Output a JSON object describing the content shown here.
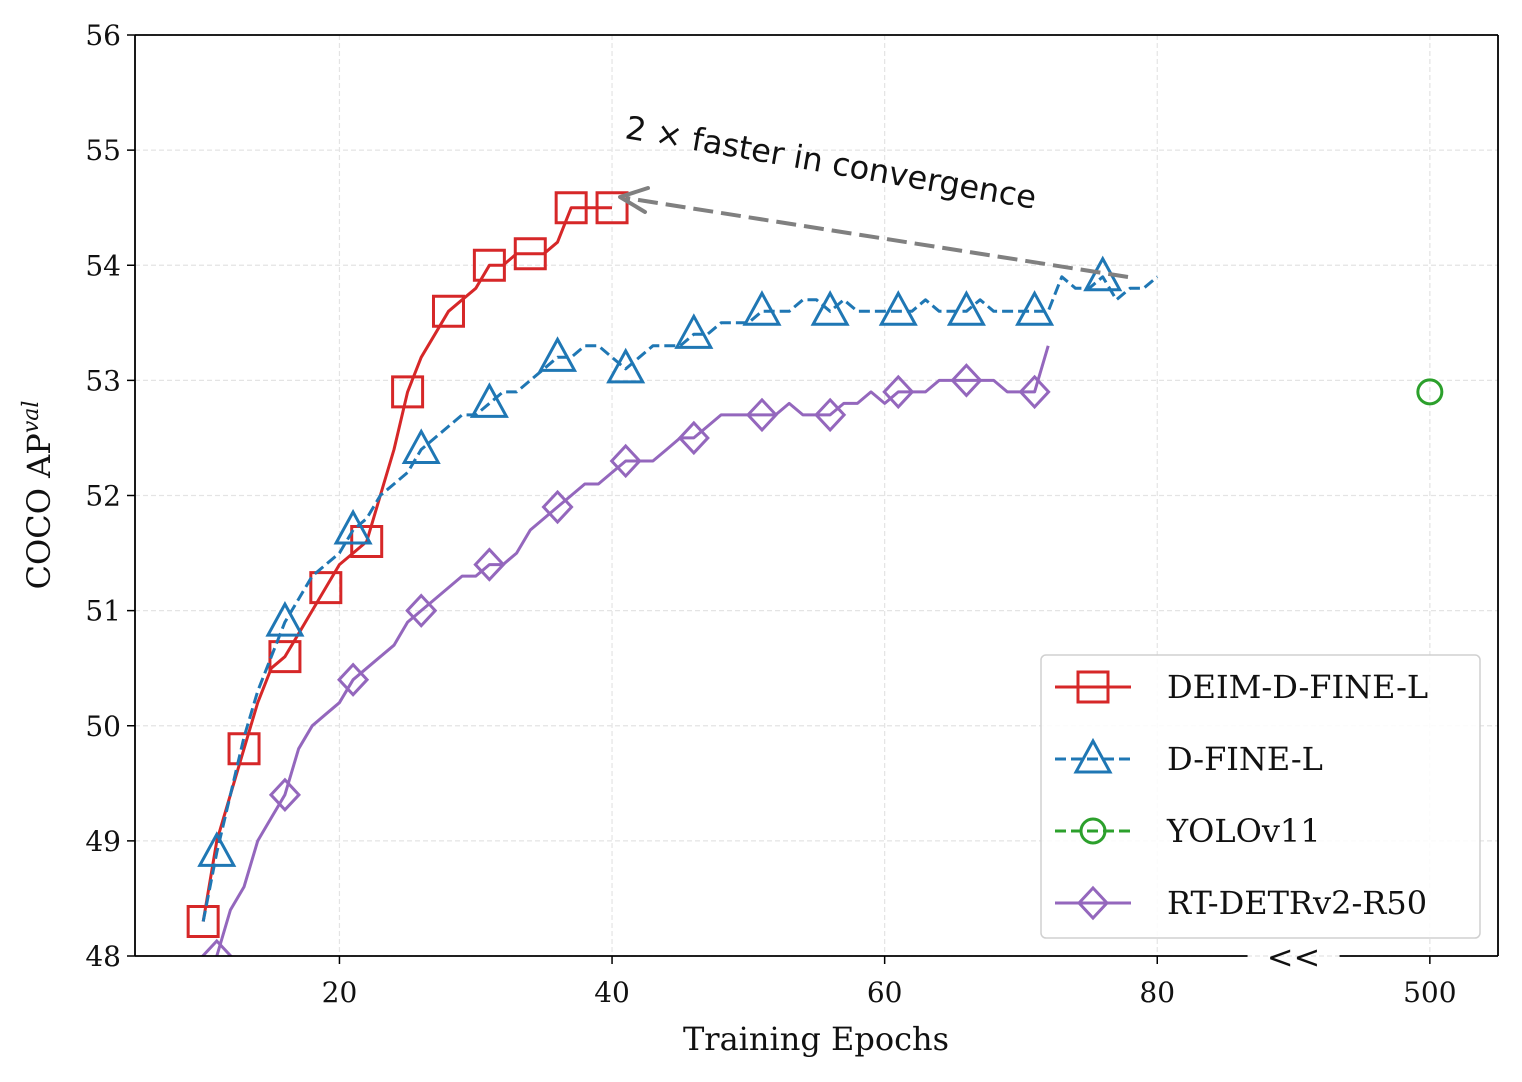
{
  "chart_data": {
    "type": "line",
    "xlabel": "Training Epochs",
    "ylabel": "COCO AP",
    "ylabel_sup": "val",
    "xlim": [
      5,
      505
    ],
    "xbreak": [
      90,
      490
    ],
    "break_label": "<<",
    "xticks": [
      20,
      40,
      60,
      80,
      500
    ],
    "ylim": [
      48,
      56
    ],
    "yticks": [
      48,
      49,
      50,
      51,
      52,
      53,
      54,
      55,
      56
    ],
    "grid": true,
    "legend": "lower right",
    "annotation": "2 × faster in convergence",
    "series": [
      {
        "name": "DEIM-D-FINE-L",
        "color": "#d62728",
        "linestyle": "solid",
        "marker": "square",
        "markevery": [
          0,
          3
        ],
        "x": [
          10,
          11,
          12,
          13,
          14,
          15,
          16,
          17,
          18,
          19,
          20,
          21,
          22,
          23,
          24,
          25,
          26,
          27,
          28,
          29,
          30,
          31,
          32,
          33,
          34,
          35,
          36,
          37,
          38,
          39,
          40
        ],
        "values": [
          48.3,
          49.0,
          49.4,
          49.8,
          50.2,
          50.5,
          50.6,
          50.8,
          51.0,
          51.2,
          51.4,
          51.5,
          51.6,
          52.0,
          52.4,
          52.9,
          53.2,
          53.4,
          53.6,
          53.7,
          53.8,
          54.0,
          54.0,
          54.1,
          54.1,
          54.1,
          54.2,
          54.5,
          54.5,
          54.5,
          54.5
        ]
      },
      {
        "name": "D-FINE-L",
        "color": "#1f77b4",
        "linestyle": "dashed",
        "marker": "triangle",
        "markevery": [
          1,
          5
        ],
        "x": [
          10,
          11,
          12,
          13,
          14,
          15,
          16,
          17,
          18,
          19,
          20,
          21,
          22,
          23,
          24,
          25,
          26,
          27,
          28,
          29,
          30,
          31,
          32,
          33,
          34,
          35,
          36,
          37,
          38,
          39,
          40,
          41,
          42,
          43,
          44,
          45,
          46,
          47,
          48,
          49,
          50,
          51,
          52,
          53,
          54,
          55,
          56,
          57,
          58,
          59,
          60,
          61,
          62,
          63,
          64,
          65,
          66,
          67,
          68,
          69,
          70,
          71,
          72,
          73,
          74,
          75,
          76,
          77,
          78,
          79,
          80
        ],
        "values": [
          48.3,
          48.9,
          49.4,
          49.9,
          50.3,
          50.6,
          50.9,
          51.1,
          51.3,
          51.4,
          51.5,
          51.7,
          51.8,
          52.0,
          52.1,
          52.2,
          52.4,
          52.5,
          52.6,
          52.7,
          52.7,
          52.8,
          52.9,
          52.9,
          53.0,
          53.1,
          53.2,
          53.2,
          53.3,
          53.3,
          53.2,
          53.1,
          53.2,
          53.3,
          53.3,
          53.3,
          53.4,
          53.4,
          53.5,
          53.5,
          53.5,
          53.6,
          53.6,
          53.6,
          53.7,
          53.7,
          53.6,
          53.7,
          53.6,
          53.6,
          53.6,
          53.6,
          53.6,
          53.7,
          53.6,
          53.6,
          53.6,
          53.7,
          53.6,
          53.6,
          53.6,
          53.6,
          53.6,
          53.9,
          53.8,
          53.8,
          53.9,
          53.7,
          53.8,
          53.8,
          53.9
        ]
      },
      {
        "name": "YOLOv11",
        "color": "#2ca02c",
        "linestyle": "dashed",
        "marker": "circle",
        "markevery": [
          0,
          1
        ],
        "x": [
          500
        ],
        "values": [
          52.9
        ]
      },
      {
        "name": "RT-DETRv2-R50",
        "color": "#9467bd",
        "linestyle": "solid",
        "marker": "diamond",
        "markevery": [
          0,
          5
        ],
        "x": [
          11,
          12,
          13,
          14,
          15,
          16,
          17,
          18,
          19,
          20,
          21,
          22,
          23,
          24,
          25,
          26,
          27,
          28,
          29,
          30,
          31,
          32,
          33,
          34,
          35,
          36,
          37,
          38,
          39,
          40,
          41,
          42,
          43,
          44,
          45,
          46,
          47,
          48,
          49,
          50,
          51,
          52,
          53,
          54,
          55,
          56,
          57,
          58,
          59,
          60,
          61,
          62,
          63,
          64,
          65,
          66,
          67,
          68,
          69,
          70,
          71,
          72
        ],
        "values": [
          48.0,
          48.4,
          48.6,
          49.0,
          49.2,
          49.4,
          49.8,
          50.0,
          50.1,
          50.2,
          50.4,
          50.5,
          50.6,
          50.7,
          50.9,
          51.0,
          51.1,
          51.2,
          51.3,
          51.3,
          51.4,
          51.4,
          51.5,
          51.7,
          51.8,
          51.9,
          52.0,
          52.1,
          52.1,
          52.2,
          52.3,
          52.3,
          52.3,
          52.4,
          52.5,
          52.5,
          52.6,
          52.7,
          52.7,
          52.7,
          52.7,
          52.7,
          52.8,
          52.7,
          52.7,
          52.7,
          52.8,
          52.8,
          52.9,
          52.8,
          52.9,
          52.9,
          52.9,
          53.0,
          53.0,
          53.0,
          53.0,
          53.0,
          52.9,
          52.9,
          52.9,
          53.3
        ]
      }
    ]
  }
}
